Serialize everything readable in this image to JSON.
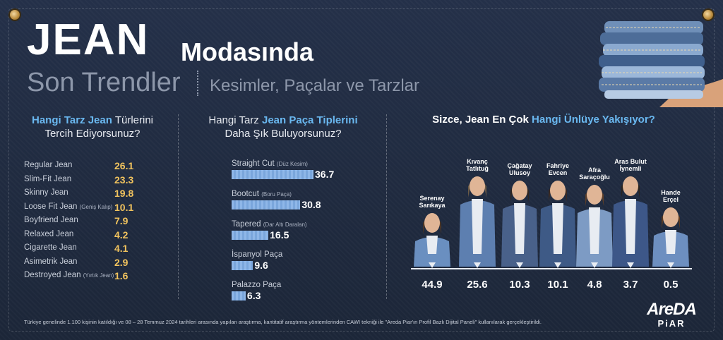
{
  "header": {
    "title_main": "JEAN",
    "title_secondary": "Modasında",
    "subtitle_left": "Son Trendler",
    "subtitle_right": "Kesimler, Paçalar ve Tarzlar"
  },
  "panel1": {
    "question_hl": "Hangi Tarz Jean",
    "question_rest": "Türlerini",
    "question_line2": "Tercih Ediyorsunuz?"
  },
  "panel2": {
    "question_pre": "Hangi Tarz",
    "question_hl": "Jean Paça Tiplerini",
    "question_line2": "Daha Şık Buluyorsunuz?"
  },
  "panel3": {
    "question_pre": "Sizce, Jean En Çok",
    "question_hl": "Hangi Ünlüye Yakışıyor?"
  },
  "chart_data": [
    {
      "type": "table",
      "title": "Hangi Tarz Jean Türlerini Tercih Ediyorsunuz?",
      "rows": [
        {
          "label": "Regular Jean",
          "note": "",
          "value": 26.1
        },
        {
          "label": "Slim-Fit Jean",
          "note": "",
          "value": 23.3
        },
        {
          "label": "Skinny Jean",
          "note": "",
          "value": 19.8
        },
        {
          "label": "Loose Fit Jean",
          "note": "(Geniş Kalıp)",
          "value": 10.1
        },
        {
          "label": "Boyfriend Jean",
          "note": "",
          "value": 7.9
        },
        {
          "label": "Relaxed Jean",
          "note": "",
          "value": 4.2
        },
        {
          "label": "Cigarette Jean",
          "note": "",
          "value": 4.1
        },
        {
          "label": "Asimetrik Jean",
          "note": "",
          "value": 2.9
        },
        {
          "label": "Destroyed Jean",
          "note": "(Yırtık Jean)",
          "value": 1.6
        }
      ]
    },
    {
      "type": "bar",
      "title": "Hangi Tarz Jean Paça Tiplerini Daha Şık Buluyorsunuz?",
      "categories": [
        "Straight Cut",
        "Bootcut",
        "Tapered",
        "İspanyol Paça",
        "Palazzo Paça"
      ],
      "notes": [
        "(Düz Kesim)",
        "(Boru Paça)",
        "(Dar Altı Daralan)",
        "",
        ""
      ],
      "values": [
        36.7,
        30.8,
        16.5,
        9.6,
        6.3
      ],
      "ylim": [
        0,
        40
      ],
      "bar_color": "#8fb7e8"
    },
    {
      "type": "bar",
      "title": "Sizce, Jean En Çok Hangi Ünlüye Yakışıyor?",
      "categories": [
        "Serenay Sarıkaya",
        "Kıvanç Tatlıtuğ",
        "Çağatay Ulusoy",
        "Fahriye Evcen",
        "Afra Saraçoğlu",
        "Aras Bulut İynemli",
        "Hande Erçel"
      ],
      "label_lines": [
        [
          "Serenay",
          "Sarıkaya"
        ],
        [
          "Kıvanç",
          "Tatlıtuğ"
        ],
        [
          "Çağatay",
          "Ulusoy"
        ],
        [
          "Fahriye",
          "Evcen"
        ],
        [
          "Afra",
          "Saraçoğlu"
        ],
        [
          "Aras Bulut",
          "İynemli"
        ],
        [
          "Hande",
          "Erçel"
        ]
      ],
      "values": [
        44.9,
        25.6,
        10.3,
        10.1,
        4.8,
        3.7,
        0.5
      ]
    }
  ],
  "footer": {
    "note": "Türkiye genelinde 1.100 kişinin katıldığı ve 08 – 28 Temmuz 2024 tarihleri arasında yapılan araştırma, kantitatif araştırma yöntemlerinden CAWI tekniği ile \"Areda Piar'ın Profil Bazlı Dijital Paneli\" kullanılarak gerçekleştirildi.",
    "logo_top": "AreDA",
    "logo_bottom": "PiAR"
  },
  "colors": {
    "background": "#1f2a3d",
    "highlight": "#6ab8f0",
    "value_gold": "#f1c35e",
    "bar": "#8fb7e8"
  }
}
